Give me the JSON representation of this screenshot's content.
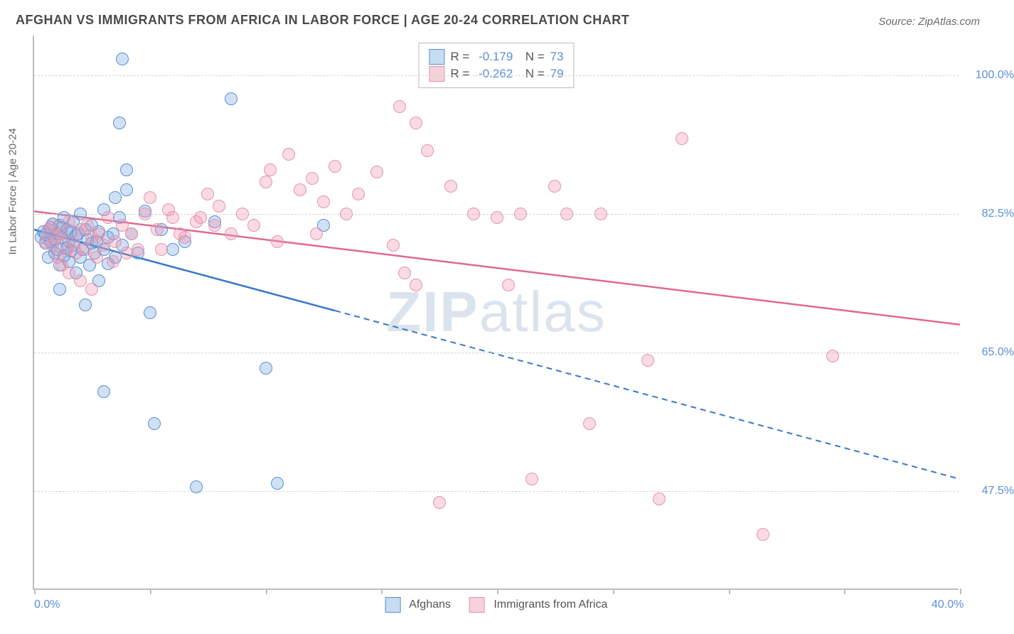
{
  "title": "AFGHAN VS IMMIGRANTS FROM AFRICA IN LABOR FORCE | AGE 20-24 CORRELATION CHART",
  "source": "Source: ZipAtlas.com",
  "watermark_bold": "ZIP",
  "watermark_light": "atlas",
  "y_axis_title": "In Labor Force | Age 20-24",
  "chart": {
    "type": "scatter",
    "xlim": [
      0,
      40
    ],
    "ylim": [
      35,
      105
    ],
    "x_ticks": [
      0,
      5,
      10,
      15,
      20,
      25,
      30,
      35,
      40
    ],
    "x_tick_labels": {
      "0": "0.0%",
      "40": "40.0%"
    },
    "y_ticks": [
      47.5,
      65.0,
      82.5,
      100.0
    ],
    "y_tick_labels": [
      "47.5%",
      "65.0%",
      "82.5%",
      "100.0%"
    ],
    "background_color": "#ffffff",
    "grid_color": "#d4d4d4",
    "axis_color": "#bdbdbd",
    "point_radius": 9,
    "point_border_width": 1.5,
    "series": [
      {
        "name": "Afghans",
        "fill_color": "rgba(120,170,225,0.35)",
        "border_color": "#5b8fd6",
        "legend_fill": "#c6dcf2",
        "R": "-0.179",
        "N": "73",
        "trend": {
          "x1": 0,
          "y1": 80.5,
          "x2": 40,
          "y2": 49.0,
          "solid_until_x": 13.0,
          "color": "#3a77c6",
          "width": 2.5
        },
        "points": [
          [
            0.3,
            79.5
          ],
          [
            0.4,
            80.2
          ],
          [
            0.5,
            78.8
          ],
          [
            0.5,
            79.9
          ],
          [
            0.6,
            80.5
          ],
          [
            0.6,
            77.0
          ],
          [
            0.7,
            79.0
          ],
          [
            0.7,
            80.8
          ],
          [
            0.8,
            78.5
          ],
          [
            0.8,
            81.2
          ],
          [
            0.9,
            79.2
          ],
          [
            0.9,
            77.5
          ],
          [
            1.0,
            80.0
          ],
          [
            1.0,
            78.0
          ],
          [
            1.1,
            81.0
          ],
          [
            1.1,
            76.0
          ],
          [
            1.1,
            73.0
          ],
          [
            1.2,
            79.5
          ],
          [
            1.2,
            80.8
          ],
          [
            1.3,
            77.2
          ],
          [
            1.3,
            82.0
          ],
          [
            1.4,
            78.2
          ],
          [
            1.4,
            80.5
          ],
          [
            1.5,
            79.0
          ],
          [
            1.5,
            76.5
          ],
          [
            1.6,
            80.2
          ],
          [
            1.6,
            77.8
          ],
          [
            1.7,
            78.5
          ],
          [
            1.7,
            81.5
          ],
          [
            1.8,
            79.8
          ],
          [
            1.8,
            75.0
          ],
          [
            1.9,
            80.0
          ],
          [
            2.0,
            77.0
          ],
          [
            2.0,
            82.5
          ],
          [
            2.1,
            78.0
          ],
          [
            2.2,
            80.5
          ],
          [
            2.3,
            79.2
          ],
          [
            2.4,
            76.0
          ],
          [
            2.5,
            78.8
          ],
          [
            2.5,
            81.0
          ],
          [
            2.6,
            77.5
          ],
          [
            2.7,
            79.0
          ],
          [
            2.8,
            80.2
          ],
          [
            2.8,
            74.0
          ],
          [
            3.0,
            78.0
          ],
          [
            3.0,
            83.0
          ],
          [
            3.2,
            79.5
          ],
          [
            3.2,
            76.2
          ],
          [
            3.4,
            80.0
          ],
          [
            3.5,
            84.5
          ],
          [
            3.5,
            77.0
          ],
          [
            3.7,
            82.0
          ],
          [
            3.8,
            78.5
          ],
          [
            4.0,
            85.5
          ],
          [
            4.2,
            80.0
          ],
          [
            4.5,
            77.5
          ],
          [
            2.2,
            71.0
          ],
          [
            3.0,
            60.0
          ],
          [
            3.7,
            94.0
          ],
          [
            3.8,
            102.0
          ],
          [
            4.0,
            88.0
          ],
          [
            5.0,
            70.0
          ],
          [
            5.2,
            56.0
          ],
          [
            6.5,
            79.0
          ],
          [
            7.0,
            48.0
          ],
          [
            7.8,
            81.5
          ],
          [
            8.5,
            97.0
          ],
          [
            10.0,
            63.0
          ],
          [
            10.5,
            48.5
          ],
          [
            12.5,
            81.0
          ],
          [
            5.5,
            80.5
          ],
          [
            6.0,
            78.0
          ],
          [
            4.8,
            82.8
          ]
        ]
      },
      {
        "name": "Immigrants from Africa",
        "fill_color": "rgba(240,150,175,0.35)",
        "border_color": "#e495ab",
        "legend_fill": "#f5d1db",
        "R": "-0.262",
        "N": "79",
        "trend": {
          "x1": 0,
          "y1": 82.8,
          "x2": 40,
          "y2": 68.5,
          "solid_until_x": 40,
          "color": "#e06a8f",
          "width": 2.5
        },
        "points": [
          [
            0.5,
            79.0
          ],
          [
            0.6,
            80.5
          ],
          [
            0.8,
            78.5
          ],
          [
            0.8,
            81.0
          ],
          [
            1.0,
            79.5
          ],
          [
            1.0,
            77.0
          ],
          [
            1.2,
            80.0
          ],
          [
            1.2,
            76.0
          ],
          [
            1.4,
            78.0
          ],
          [
            1.5,
            81.5
          ],
          [
            1.5,
            75.0
          ],
          [
            1.7,
            79.0
          ],
          [
            1.8,
            77.5
          ],
          [
            2.0,
            80.5
          ],
          [
            2.0,
            74.0
          ],
          [
            2.2,
            78.0
          ],
          [
            2.3,
            81.0
          ],
          [
            2.5,
            79.5
          ],
          [
            2.5,
            73.0
          ],
          [
            2.7,
            77.0
          ],
          [
            2.8,
            80.0
          ],
          [
            3.0,
            78.5
          ],
          [
            3.2,
            82.0
          ],
          [
            3.4,
            76.5
          ],
          [
            3.5,
            79.0
          ],
          [
            3.8,
            81.0
          ],
          [
            4.0,
            77.5
          ],
          [
            4.2,
            80.0
          ],
          [
            4.5,
            78.0
          ],
          [
            4.8,
            82.5
          ],
          [
            5.0,
            84.5
          ],
          [
            5.3,
            80.5
          ],
          [
            5.5,
            78.0
          ],
          [
            5.8,
            83.0
          ],
          [
            6.0,
            82.0
          ],
          [
            6.3,
            80.0
          ],
          [
            6.5,
            79.5
          ],
          [
            7.0,
            81.5
          ],
          [
            7.2,
            82.0
          ],
          [
            7.5,
            85.0
          ],
          [
            7.8,
            81.0
          ],
          [
            8.0,
            83.5
          ],
          [
            8.5,
            80.0
          ],
          [
            9.0,
            82.5
          ],
          [
            9.5,
            81.0
          ],
          [
            10.0,
            86.5
          ],
          [
            10.2,
            88.0
          ],
          [
            10.5,
            79.0
          ],
          [
            11.0,
            90.0
          ],
          [
            11.5,
            85.5
          ],
          [
            12.0,
            87.0
          ],
          [
            12.5,
            84.0
          ],
          [
            13.0,
            88.5
          ],
          [
            13.5,
            82.5
          ],
          [
            14.0,
            85.0
          ],
          [
            14.8,
            87.8
          ],
          [
            15.5,
            78.5
          ],
          [
            15.8,
            96.0
          ],
          [
            16.0,
            75.0
          ],
          [
            16.5,
            73.5
          ],
          [
            16.5,
            94.0
          ],
          [
            17.0,
            90.5
          ],
          [
            17.5,
            46.0
          ],
          [
            18.0,
            86.0
          ],
          [
            19.0,
            82.5
          ],
          [
            20.0,
            82.0
          ],
          [
            20.5,
            73.5
          ],
          [
            21.0,
            82.5
          ],
          [
            21.5,
            49.0
          ],
          [
            22.5,
            86.0
          ],
          [
            23.0,
            82.5
          ],
          [
            24.0,
            56.0
          ],
          [
            24.5,
            82.5
          ],
          [
            26.5,
            64.0
          ],
          [
            27.0,
            46.5
          ],
          [
            28.0,
            92.0
          ],
          [
            31.5,
            42.0
          ],
          [
            34.5,
            64.5
          ],
          [
            12.2,
            80.0
          ]
        ]
      }
    ]
  },
  "legend_bottom": [
    {
      "label": "Afghans",
      "fill": "#c6dcf2",
      "border": "#5b8fd6"
    },
    {
      "label": "Immigrants from Africa",
      "fill": "#f5d1db",
      "border": "#e495ab"
    }
  ]
}
